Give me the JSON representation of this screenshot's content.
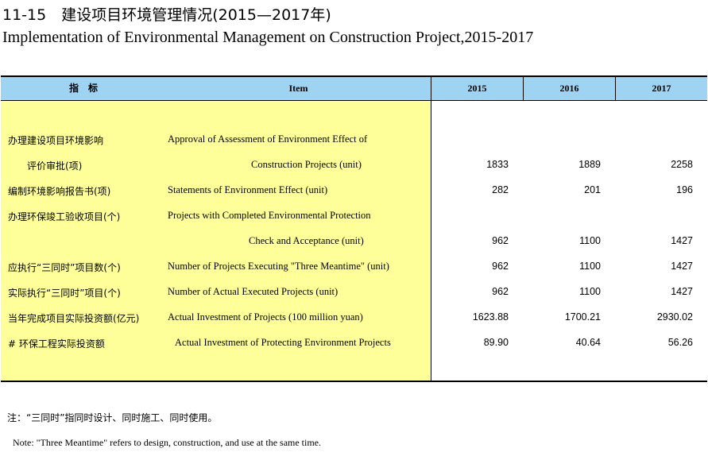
{
  "title": {
    "cn": "11-15　建设项目环境管理情况(2015—2017年)",
    "en": "Implementation of Environmental Management on Construction Project,2015-2017"
  },
  "table": {
    "headers": {
      "indicator": "指　标",
      "item": "Item",
      "y2015": "2015",
      "y2016": "2016",
      "y2017": "2017"
    },
    "rows": [
      {
        "cn": "办理建设项目环境影响",
        "en": "Approval of Assessment of Environment Effect of",
        "v2015": "",
        "v2016": "",
        "v2017": ""
      },
      {
        "cn": "评价审批(项)",
        "en": "Construction Projects (unit)",
        "v2015": "1833",
        "v2016": "1889",
        "v2017": "2258"
      },
      {
        "cn": "编制环境影响报告书(项)",
        "en": "Statements of Environment Effect (unit)",
        "v2015": "282",
        "v2016": "201",
        "v2017": "196"
      },
      {
        "cn": "办理环保竣工验收项目(个)",
        "en": "Projects with Completed Environmental Protection",
        "v2015": "",
        "v2016": "",
        "v2017": ""
      },
      {
        "cn": "",
        "en": "Check and Acceptance (unit)",
        "v2015": "962",
        "v2016": "1100",
        "v2017": "1427"
      },
      {
        "cn": "应执行“三同时”项目数(个)",
        "en": "Number of Projects Executing \"Three Meantime\" (unit)",
        "v2015": "962",
        "v2016": "1100",
        "v2017": "1427"
      },
      {
        "cn": "实际执行“三同时”项目(个)",
        "en": "Number of Actual Executed Projects (unit)",
        "v2015": "962",
        "v2016": "1100",
        "v2017": "1427"
      },
      {
        "cn": "当年完成项目实际投资额(亿元)",
        "en": "Actual Investment of Projects (100 million yuan)",
        "v2015": "1623.88",
        "v2016": "1700.21",
        "v2017": "2930.02"
      },
      {
        "cn": "# 环保工程实际投资额",
        "en": "Actual Investment of Protecting Environment Projects",
        "v2015": "89.90",
        "v2016": "40.64",
        "v2017": "56.26"
      }
    ]
  },
  "notes": {
    "cn": "注：“三同时”指同时设计、同时施工、同时使用。",
    "en": "Note: \"Three Meantime\" refers to design, construction, and use at the same time."
  }
}
